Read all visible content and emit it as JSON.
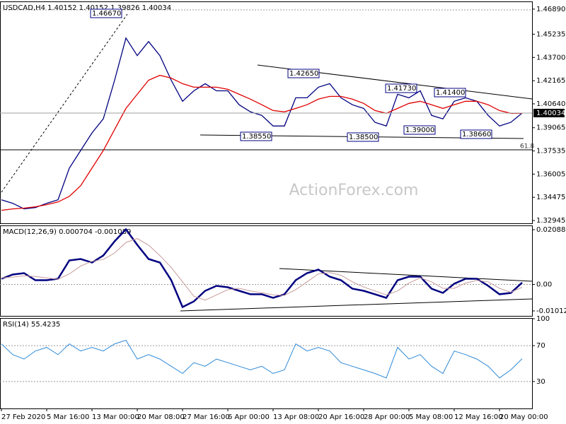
{
  "chart_data": {
    "type": "line",
    "categories": [
      "27 Feb 2020",
      null,
      null,
      null,
      "5 Mar 16:00",
      null,
      null,
      null,
      "13 Mar 00:00",
      null,
      null,
      null,
      "20 Mar 08:00",
      null,
      null,
      null,
      "27 Mar 16:00",
      null,
      null,
      null,
      "6 Apr 00:00",
      null,
      null,
      null,
      "13 Apr 08:00",
      null,
      null,
      null,
      "20 Apr 16:00",
      null,
      null,
      null,
      "28 Apr 00:00",
      null,
      null,
      null,
      "5 May 08:00",
      null,
      null,
      null,
      "12 May 16:00",
      null,
      null,
      null,
      "20 May 00:00",
      null,
      null
    ],
    "watermark": "ActionForex.com",
    "panels": [
      {
        "title": "USDCAD,H4  1.40152 1.40152 1.39826 1.40034",
        "ylim": [
          1.3276,
          1.4735
        ],
        "yticks": [
          1.32945,
          1.34475,
          1.36005,
          1.37535,
          1.39065,
          {
            "value": 1.4064,
            "label": "1.40640"
          },
          1.42165,
          {
            "value": 1.437,
            "label": "1.43700"
          },
          1.45235,
          {
            "value": 1.4689,
            "label": "1.46890"
          }
        ],
        "last_price": 1.40034,
        "annotations": [
          "1.46670",
          "1.42650",
          "1.41730",
          "1.41400",
          "1.38550",
          "1.38500",
          "1.39000",
          "1.38660",
          "61.8"
        ],
        "series": [
          {
            "color": "#000080",
            "values": [
              1.3431,
              1.3408,
              1.3371,
              1.338,
              1.3408,
              1.3431,
              1.364,
              1.3756,
              1.3872,
              1.3965,
              1.422,
              1.4498,
              1.4382,
              1.4475,
              1.4382,
              1.422,
              1.4081,
              1.415,
              1.4197,
              1.415,
              1.415,
              1.4058,
              1.4011,
              1.3988,
              1.3918,
              1.3918,
              1.4104,
              1.4104,
              1.4174,
              1.4197,
              1.4104,
              1.4058,
              1.4034,
              1.3942,
              1.3918,
              1.4127,
              1.4104,
              1.415,
              1.3988,
              1.3965,
              1.4081,
              1.4104,
              1.4081,
              1.3988,
              1.3918,
              1.3942,
              1.4003
            ]
          },
          {
            "color": "#e00000",
            "values": [
              1.3362,
              1.3371,
              1.3376,
              1.3385,
              1.3399,
              1.3417,
              1.3454,
              1.3524,
              1.364,
              1.3756,
              1.3895,
              1.4034,
              1.4127,
              1.422,
              1.4252,
              1.4234,
              1.4197,
              1.4174,
              1.4174,
              1.4174,
              1.416,
              1.4127,
              1.4095,
              1.4058,
              1.402,
              1.4011,
              1.4034,
              1.4058,
              1.4095,
              1.4113,
              1.4113,
              1.4095,
              1.4067,
              1.402,
              1.4002,
              1.4034,
              1.4067,
              1.4081,
              1.4058,
              1.4034,
              1.4058,
              1.4081,
              1.4081,
              1.4058,
              1.402,
              1.4002,
              1.4002
            ]
          }
        ]
      },
      {
        "title": "MACD(12,26,9) 0.000704 -0.001089",
        "ylim": [
          -0.01201,
          0.02224
        ],
        "yticks": [
          -0.010121,
          {
            "value": 0,
            "label": "0.00"
          },
          0.020884
        ],
        "series": [
          {
            "color": "#000080",
            "width": 2.5,
            "values": [
              0.00216,
              0.00377,
              0.00431,
              0.00162,
              0.00162,
              0.00216,
              0.00917,
              0.00971,
              0.00836,
              0.01105,
              0.01645,
              0.02103,
              0.0151,
              0.00971,
              0.00836,
              0.00162,
              -0.00863,
              -0.00647,
              -0.00243,
              -0.00054,
              -0.00108,
              -0.00243,
              -0.00377,
              -0.00377,
              -0.00512,
              -0.00377,
              0.00162,
              0.00431,
              0.00566,
              0.00297,
              0.00162,
              -0.00162,
              -0.00243,
              -0.00377,
              -0.00512,
              0.00162,
              0.00297,
              0.00297,
              -0.00162,
              -0.00324,
              0.00027,
              0.00216,
              0.00216,
              -0.00054,
              -0.00377,
              -0.00324,
              0.0007
            ]
          },
          {
            "color": "#c89b9b",
            "width": 1,
            "values": [
              0.0025,
              0.0028,
              0.0033,
              0.003,
              0.0025,
              0.002,
              0.004,
              0.007,
              0.0088,
              0.0095,
              0.012,
              0.016,
              0.0175,
              0.015,
              0.011,
              0.0065,
              0.001,
              -0.0045,
              -0.006,
              -0.004,
              -0.002,
              -0.0015,
              -0.0025,
              -0.0032,
              -0.004,
              -0.0042,
              -0.002,
              0.001,
              0.004,
              0.0045,
              0.0035,
              0.001,
              -0.001,
              -0.0025,
              -0.004,
              -0.0025,
              0.0005,
              0.0025,
              0.001,
              -0.0015,
              -0.0015,
              0.0005,
              0.0015,
              0.001,
              -0.0015,
              -0.003,
              -0.0011
            ]
          }
        ]
      },
      {
        "title": "RSI(14) 55.4235",
        "ylim": [
          0,
          100
        ],
        "yticks": [
          30,
          70,
          100
        ],
        "series": [
          {
            "color": "#2f8ad8",
            "width": 1,
            "values": [
              72,
              60,
              55,
              64,
              68,
              60,
              72,
              64,
              68,
              64,
              72,
              76,
              55,
              60,
              55,
              47,
              39,
              51,
              47,
              55,
              51,
              47,
              43,
              47,
              39,
              43,
              72,
              64,
              68,
              64,
              51,
              47,
              43,
              39,
              34,
              68,
              55,
              60,
              47,
              39,
              64,
              60,
              55,
              47,
              34,
              43,
              55.4
            ]
          }
        ]
      }
    ]
  }
}
